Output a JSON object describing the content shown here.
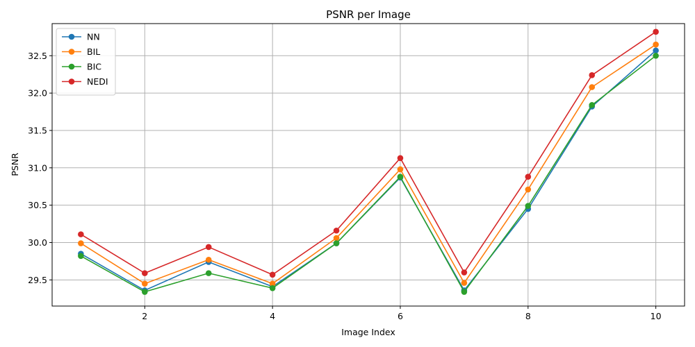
{
  "chart_data": {
    "type": "line",
    "title": "PSNR per Image",
    "xlabel": "Image Index",
    "ylabel": "PSNR",
    "xlim": [
      0.55,
      10.45
    ],
    "ylim": [
      29.15,
      32.93
    ],
    "xticks": [
      2,
      4,
      6,
      8,
      10
    ],
    "yticks": [
      29.5,
      30.0,
      30.5,
      31.0,
      31.5,
      32.0,
      32.5
    ],
    "ytick_labels": [
      "29.5",
      "30.0",
      "30.5",
      "31.0",
      "31.5",
      "32.0",
      "32.5"
    ],
    "grid": true,
    "legend_position": "top-left",
    "x": [
      1,
      2,
      3,
      4,
      5,
      6,
      7,
      8,
      9,
      10
    ],
    "series": [
      {
        "name": "NN",
        "color": "#1f77b4",
        "values": [
          29.85,
          29.36,
          29.74,
          29.41,
          29.99,
          30.87,
          29.36,
          30.45,
          31.82,
          32.57
        ]
      },
      {
        "name": "BIL",
        "color": "#ff7f0e",
        "values": [
          29.99,
          29.45,
          29.77,
          29.45,
          30.06,
          30.98,
          29.46,
          30.71,
          32.08,
          32.65
        ]
      },
      {
        "name": "BIC",
        "color": "#2ca02c",
        "values": [
          29.82,
          29.34,
          29.59,
          29.39,
          29.99,
          30.88,
          29.34,
          30.49,
          31.84,
          32.5
        ]
      },
      {
        "name": "NEDI",
        "color": "#d62728",
        "values": [
          30.11,
          29.59,
          29.94,
          29.57,
          30.16,
          31.13,
          29.6,
          30.88,
          32.24,
          32.82
        ]
      }
    ]
  }
}
